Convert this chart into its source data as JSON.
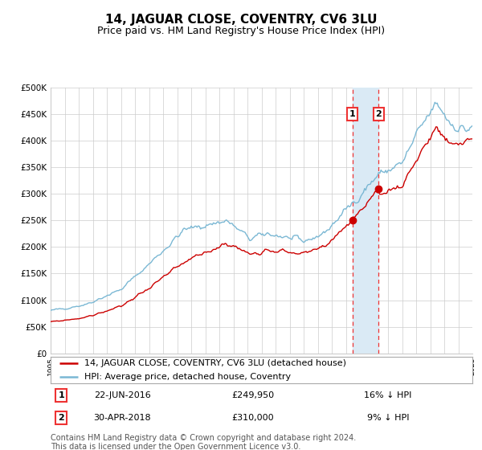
{
  "title": "14, JAGUAR CLOSE, COVENTRY, CV6 3LU",
  "subtitle": "Price paid vs. HM Land Registry's House Price Index (HPI)",
  "ylim": [
    0,
    500000
  ],
  "yticks": [
    0,
    50000,
    100000,
    150000,
    200000,
    250000,
    300000,
    350000,
    400000,
    450000,
    500000
  ],
  "ytick_labels": [
    "£0",
    "£50K",
    "£100K",
    "£150K",
    "£200K",
    "£250K",
    "£300K",
    "£350K",
    "£400K",
    "£450K",
    "£500K"
  ],
  "sale1_date": "22-JUN-2016",
  "sale1_price": 249950,
  "sale1_label": "£249,950",
  "sale1_hpi_pct": "16% ↓ HPI",
  "sale1_x": 2016.47,
  "sale2_date": "30-APR-2018",
  "sale2_price": 310000,
  "sale2_label": "£310,000",
  "sale2_hpi_pct": "9% ↓ HPI",
  "sale2_x": 2018.33,
  "hpi_color": "#7bb8d4",
  "price_color": "#cc0000",
  "grid_color": "#cccccc",
  "bg_color": "#ffffff",
  "highlight_color": "#daeaf5",
  "dashed_color": "#ee3333",
  "legend_label_price": "14, JAGUAR CLOSE, COVENTRY, CV6 3LU (detached house)",
  "legend_label_hpi": "HPI: Average price, detached house, Coventry",
  "footnote": "Contains HM Land Registry data © Crown copyright and database right 2024.\nThis data is licensed under the Open Government Licence v3.0.",
  "title_fontsize": 11,
  "subtitle_fontsize": 9,
  "tick_fontsize": 7.5,
  "legend_fontsize": 8,
  "footnote_fontsize": 7
}
